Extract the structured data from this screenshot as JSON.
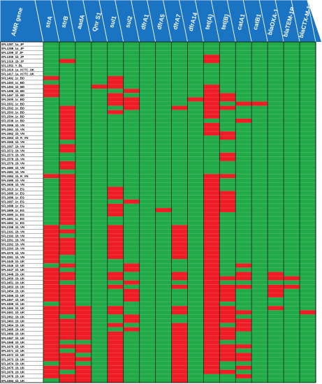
{
  "chart_data": {
    "type": "heatmap",
    "corner_label": "AMR gene",
    "genes": [
      "strA",
      "strB",
      "aadA",
      "Qnr S1",
      "sul1",
      "sul2",
      "dfrA1",
      "dfrA5",
      "dfrA7",
      "dfrA14",
      "tet(A)",
      "tet(B)",
      "catA1",
      "catB1",
      "blaOXA-1",
      "blaTEM-1B",
      "blaCTX-M-1"
    ],
    "strains": [
      "SFL1287_1a_JP",
      "SFL1288_1a_JP",
      "SFL1299_1f_JP",
      "SFL1309_1b_JP",
      "SFL1316_1b_JP",
      "SFL1352_Y_BL",
      "SFL1416_1a_XCTC_UK",
      "SFL1417_1a_XCTC_UK",
      "SFL1492_1c_BD",
      "SFL1493_1c_BD",
      "SFL1494_1b_BD",
      "SFL1496_1b_BD",
      "SFL1497_1b_BD",
      "SFL1500_1c_BD",
      "SFL1501_1c_BD",
      "SFL1502_1c_BD",
      "SFL1503_1c_BD",
      "SFL1504_1c_BD",
      "SFL1538_1c_BD",
      "SFL1556_1b_VN",
      "SFL1561_1b_VN",
      "SFL1562_1b_VN",
      "SFL1564_1b_R_VN",
      "SFL1565_1b_VN",
      "SFL1567_1b_VN",
      "SFL1572_1b_VN",
      "SFL1573_1b_VN",
      "SFL1578_1b_VN",
      "SFL1579_1b_VN",
      "SFL1580_1b_VN",
      "SFL1581_1b_VN",
      "SFL1584_1b_R_VN",
      "SFL1585_1b_VN",
      "SFL1606_1b_VN",
      "SFL1613_1c_EG",
      "SFL1685_1c_EG",
      "SFL1686_1c_EG",
      "SFL1687_1c_EG",
      "SFL1688_1c_EG",
      "SFL1689_1c_EG",
      "SFL1690_1c_EG",
      "SFL1691_1c_EG",
      "SFL1692_1c_EG",
      "SFL2158_1b_VN",
      "SFL2191_1b_VN",
      "SFL2192_1b_VN",
      "SFL2261_1b_VN",
      "SFL2262_1b_VN",
      "SFL2263_1b_VN",
      "SFL2276_1b_VN",
      "SFL2281_1b_VN",
      "SFL2445_1b_UK",
      "SFL2446_1b_UK",
      "SFL2447_1b_UK",
      "SFL2448_1b_UK",
      "SFL2450_1b_UK",
      "SFL2451_1b_UK",
      "SFL2453_1b_UK",
      "SFL2454_1b_UK",
      "SFL2456_1b_UK",
      "SFL2457_1b_UK",
      "SFL2459_1b_UK",
      "SFL2460_1b_UK",
      "SFL2461_1b_UK",
      "SFL2462_1b_UK",
      "SFL2463_1b_UK",
      "SFL2464_1b_UK",
      "SFL2465_1b_UK",
      "SFL2466_1b_UK",
      "SFL2467_1b_UK",
      "SFL2468_1b_UK",
      "SFL2470_1b_UK",
      "SFL2471_1b_UK",
      "SFL2472_1b_UK",
      "SFL2473_1b_UK",
      "SFL2474_1b_UK",
      "SFL2475_1b_UK",
      "SFL2476_1b_UK",
      "SFL2478_1b_UK",
      "SFL2484_1b_UK"
    ],
    "values": [
      [
        0,
        0,
        0,
        0,
        0,
        0,
        0,
        0,
        0,
        0,
        0,
        0,
        0,
        0,
        0,
        0,
        0
      ],
      [
        0,
        0,
        0,
        0,
        0,
        0,
        0,
        0,
        0,
        0,
        0,
        0,
        0,
        0,
        0,
        0,
        0
      ],
      [
        0,
        0,
        0,
        0,
        0,
        0,
        0,
        0,
        0,
        0,
        0,
        0,
        0,
        0,
        0,
        0,
        0
      ],
      [
        0,
        0,
        0,
        0,
        0,
        0,
        0,
        0,
        0,
        0,
        1,
        0,
        0,
        0,
        0,
        0,
        0
      ],
      [
        0,
        1,
        0,
        0,
        0,
        0,
        0,
        0,
        0,
        0,
        1,
        0,
        0,
        0,
        0,
        0,
        0
      ],
      [
        0,
        0,
        0,
        0,
        0,
        0,
        0,
        0,
        0,
        0,
        0,
        0,
        0,
        0,
        0,
        0,
        0
      ],
      [
        0,
        0,
        0,
        0,
        0,
        0,
        0,
        0,
        0,
        0,
        0,
        0,
        0,
        0,
        0,
        0,
        0
      ],
      [
        0,
        0,
        0,
        0,
        0,
        0,
        0,
        0,
        0,
        0,
        0,
        0,
        0,
        0,
        0,
        0,
        0
      ],
      [
        1,
        0,
        0,
        0,
        1,
        0,
        0,
        0,
        0,
        0,
        0,
        0,
        0,
        0,
        0,
        0,
        0
      ],
      [
        0,
        0,
        0,
        0,
        1,
        0,
        0,
        0,
        0,
        0,
        0,
        0,
        0,
        0,
        0,
        0,
        0
      ],
      [
        1,
        0,
        0,
        1,
        1,
        0,
        0,
        0,
        0,
        0,
        1,
        0,
        0,
        0,
        0,
        0,
        0
      ],
      [
        1,
        0,
        0,
        0,
        0,
        1,
        0,
        0,
        0,
        0,
        1,
        0,
        0,
        0,
        0,
        0,
        0
      ],
      [
        1,
        0,
        0,
        0,
        1,
        0,
        0,
        0,
        0,
        0,
        1,
        1,
        0,
        0,
        0,
        0,
        0
      ],
      [
        0,
        0,
        0,
        0,
        1,
        1,
        0,
        0,
        0,
        1,
        1,
        1,
        0,
        0,
        0,
        0,
        0
      ],
      [
        0,
        0,
        0,
        0,
        1,
        1,
        0,
        0,
        0,
        0,
        1,
        0,
        1,
        1,
        0,
        0,
        0
      ],
      [
        0,
        1,
        0,
        0,
        0,
        1,
        0,
        0,
        1,
        0,
        1,
        1,
        0,
        0,
        0,
        0,
        0
      ],
      [
        0,
        1,
        0,
        0,
        1,
        0,
        0,
        0,
        0,
        0,
        1,
        0,
        0,
        0,
        0,
        0,
        0
      ],
      [
        0,
        1,
        0,
        0,
        0,
        0,
        0,
        0,
        0,
        0,
        1,
        0,
        0,
        0,
        0,
        0,
        0
      ],
      [
        0,
        1,
        0,
        0,
        0,
        0,
        0,
        0,
        0,
        0,
        0,
        0,
        1,
        0,
        0,
        0,
        0
      ],
      [
        0,
        1,
        0,
        0,
        0,
        0,
        0,
        0,
        0,
        0,
        1,
        0,
        0,
        0,
        0,
        0,
        0
      ],
      [
        0,
        1,
        0,
        0,
        0,
        0,
        0,
        0,
        0,
        0,
        1,
        0,
        0,
        0,
        0,
        0,
        0
      ],
      [
        0,
        1,
        0,
        0,
        0,
        0,
        0,
        0,
        0,
        0,
        1,
        1,
        0,
        0,
        0,
        0,
        0
      ],
      [
        0,
        1,
        0,
        0,
        0,
        0,
        0,
        0,
        0,
        0,
        0,
        1,
        0,
        0,
        0,
        0,
        0
      ],
      [
        0,
        0,
        0,
        0,
        0,
        0,
        0,
        0,
        0,
        0,
        0,
        0,
        0,
        0,
        0,
        0,
        0
      ],
      [
        0,
        1,
        0,
        0,
        0,
        0,
        0,
        0,
        0,
        0,
        0,
        0,
        0,
        0,
        0,
        0,
        0
      ],
      [
        0,
        1,
        0,
        0,
        0,
        0,
        0,
        0,
        0,
        0,
        0,
        0,
        0,
        0,
        0,
        0,
        0
      ],
      [
        0,
        0,
        0,
        0,
        0,
        0,
        0,
        0,
        0,
        0,
        0,
        1,
        0,
        0,
        0,
        0,
        0
      ],
      [
        0,
        0,
        0,
        0,
        0,
        0,
        0,
        0,
        0,
        0,
        0,
        1,
        0,
        0,
        0,
        0,
        0
      ],
      [
        0,
        1,
        0,
        0,
        0,
        0,
        0,
        0,
        0,
        0,
        0,
        0,
        0,
        0,
        0,
        0,
        0
      ],
      [
        0,
        1,
        0,
        0,
        0,
        0,
        0,
        0,
        0,
        0,
        0,
        0,
        0,
        0,
        0,
        0,
        0
      ],
      [
        0,
        0,
        0,
        0,
        0,
        0,
        0,
        0,
        0,
        0,
        0,
        0,
        0,
        0,
        0,
        0,
        0
      ],
      [
        1,
        1,
        0,
        0,
        0,
        0,
        0,
        0,
        0,
        0,
        1,
        1,
        0,
        0,
        0,
        0,
        0
      ],
      [
        0,
        1,
        0,
        0,
        0,
        0,
        0,
        0,
        0,
        0,
        1,
        0,
        0,
        0,
        0,
        0,
        0
      ],
      [
        0,
        1,
        0,
        0,
        0,
        0,
        0,
        0,
        0,
        0,
        1,
        0,
        0,
        0,
        0,
        0,
        0
      ],
      [
        0,
        1,
        0,
        0,
        1,
        0,
        0,
        0,
        0,
        0,
        1,
        0,
        0,
        0,
        0,
        0,
        0
      ],
      [
        0,
        1,
        0,
        0,
        1,
        0,
        0,
        0,
        0,
        0,
        1,
        1,
        0,
        0,
        0,
        0,
        0
      ],
      [
        0,
        1,
        0,
        0,
        1,
        0,
        0,
        0,
        0,
        0,
        1,
        1,
        0,
        0,
        0,
        0,
        0
      ],
      [
        0,
        1,
        0,
        0,
        0,
        1,
        0,
        0,
        0,
        0,
        1,
        1,
        0,
        0,
        0,
        0,
        0
      ],
      [
        0,
        1,
        0,
        0,
        1,
        0,
        0,
        0,
        0,
        0,
        1,
        1,
        0,
        0,
        0,
        0,
        0
      ],
      [
        0,
        1,
        0,
        0,
        1,
        0,
        0,
        1,
        0,
        0,
        1,
        1,
        0,
        0,
        0,
        0,
        0
      ],
      [
        0,
        1,
        0,
        0,
        1,
        0,
        0,
        0,
        0,
        0,
        1,
        0,
        0,
        0,
        0,
        0,
        0
      ],
      [
        0,
        1,
        0,
        0,
        0,
        0,
        0,
        0,
        0,
        0,
        1,
        0,
        0,
        0,
        0,
        0,
        0
      ],
      [
        0,
        1,
        0,
        0,
        0,
        0,
        0,
        0,
        0,
        0,
        1,
        0,
        0,
        0,
        0,
        0,
        0
      ],
      [
        1,
        0,
        0,
        0,
        1,
        0,
        0,
        0,
        1,
        0,
        1,
        0,
        0,
        0,
        0,
        0,
        0
      ],
      [
        1,
        1,
        0,
        0,
        1,
        0,
        0,
        0,
        1,
        0,
        1,
        0,
        0,
        0,
        0,
        0,
        0
      ],
      [
        1,
        0,
        0,
        0,
        1,
        0,
        0,
        0,
        1,
        0,
        1,
        0,
        0,
        0,
        0,
        0,
        0
      ],
      [
        1,
        1,
        0,
        0,
        1,
        0,
        0,
        0,
        1,
        0,
        1,
        0,
        0,
        0,
        0,
        0,
        0
      ],
      [
        1,
        1,
        0,
        0,
        1,
        0,
        0,
        0,
        1,
        0,
        1,
        0,
        0,
        0,
        0,
        0,
        0
      ],
      [
        1,
        1,
        0,
        0,
        1,
        0,
        0,
        0,
        1,
        0,
        1,
        0,
        0,
        0,
        0,
        0,
        0
      ],
      [
        1,
        1,
        0,
        0,
        1,
        0,
        0,
        0,
        1,
        0,
        1,
        0,
        0,
        0,
        0,
        0,
        0
      ],
      [
        1,
        0,
        0,
        0,
        1,
        0,
        0,
        0,
        1,
        0,
        1,
        0,
        0,
        0,
        0,
        0,
        0
      ],
      [
        1,
        0,
        0,
        0,
        0,
        0,
        0,
        0,
        0,
        0,
        1,
        0,
        0,
        0,
        0,
        0,
        0
      ],
      [
        0,
        1,
        0,
        0,
        0,
        1,
        0,
        0,
        0,
        0,
        1,
        0,
        1,
        0,
        0,
        0,
        0
      ],
      [
        1,
        0,
        0,
        0,
        0,
        1,
        0,
        0,
        0,
        0,
        1,
        0,
        0,
        0,
        0,
        0,
        0
      ],
      [
        1,
        1,
        0,
        0,
        1,
        0,
        0,
        0,
        1,
        0,
        1,
        0,
        1,
        0,
        1,
        0,
        0
      ],
      [
        1,
        1,
        0,
        0,
        1,
        0,
        0,
        0,
        1,
        0,
        1,
        1,
        1,
        0,
        1,
        1,
        0
      ],
      [
        1,
        0,
        0,
        0,
        0,
        1,
        0,
        0,
        0,
        0,
        1,
        0,
        0,
        0,
        0,
        0,
        0
      ],
      [
        1,
        1,
        0,
        0,
        1,
        0,
        0,
        0,
        1,
        0,
        1,
        1,
        1,
        0,
        1,
        1,
        0
      ],
      [
        1,
        1,
        0,
        0,
        0,
        1,
        0,
        0,
        0,
        0,
        1,
        1,
        0,
        0,
        1,
        0,
        0
      ],
      [
        1,
        1,
        0,
        0,
        0,
        1,
        0,
        0,
        0,
        0,
        1,
        1,
        0,
        0,
        1,
        0,
        0
      ],
      [
        1,
        1,
        0,
        0,
        0,
        1,
        0,
        0,
        0,
        0,
        1,
        1,
        0,
        0,
        0,
        0,
        0
      ],
      [
        0,
        1,
        0,
        0,
        0,
        0,
        0,
        0,
        0,
        0,
        1,
        0,
        0,
        0,
        0,
        0,
        0
      ],
      [
        1,
        1,
        1,
        0,
        1,
        0,
        0,
        0,
        1,
        0,
        1,
        1,
        0,
        0,
        1,
        0,
        0
      ],
      [
        1,
        1,
        1,
        0,
        1,
        0,
        0,
        0,
        1,
        0,
        1,
        1,
        1,
        0,
        0,
        0,
        1
      ],
      [
        1,
        0,
        1,
        0,
        0,
        1,
        0,
        0,
        0,
        0,
        1,
        1,
        0,
        0,
        0,
        0,
        0
      ],
      [
        1,
        1,
        1,
        0,
        0,
        1,
        0,
        0,
        0,
        0,
        1,
        1,
        1,
        0,
        0,
        0,
        0
      ],
      [
        1,
        1,
        1,
        0,
        1,
        0,
        0,
        0,
        1,
        0,
        1,
        0,
        1,
        0,
        0,
        0,
        0
      ],
      [
        1,
        1,
        1,
        0,
        0,
        1,
        0,
        0,
        1,
        0,
        1,
        1,
        1,
        0,
        0,
        0,
        0
      ],
      [
        1,
        1,
        1,
        0,
        1,
        0,
        0,
        0,
        1,
        0,
        1,
        1,
        0,
        0,
        0,
        0,
        0
      ],
      [
        1,
        1,
        1,
        0,
        1,
        0,
        0,
        0,
        1,
        0,
        1,
        1,
        0,
        0,
        0,
        0,
        0
      ],
      [
        1,
        0,
        0,
        0,
        1,
        0,
        0,
        0,
        1,
        0,
        1,
        0,
        0,
        0,
        0,
        0,
        0
      ],
      [
        1,
        1,
        1,
        0,
        1,
        0,
        0,
        0,
        1,
        0,
        1,
        1,
        1,
        0,
        0,
        0,
        0
      ],
      [
        1,
        0,
        1,
        0,
        1,
        0,
        0,
        0,
        1,
        0,
        1,
        1,
        0,
        0,
        0,
        0,
        0
      ],
      [
        1,
        1,
        0,
        0,
        1,
        0,
        0,
        0,
        1,
        0,
        1,
        1,
        1,
        0,
        0,
        0,
        0
      ],
      [
        1,
        1,
        1,
        0,
        1,
        0,
        0,
        0,
        1,
        0,
        1,
        1,
        1,
        0,
        0,
        0,
        0
      ],
      [
        0,
        1,
        0,
        0,
        1,
        0,
        0,
        0,
        1,
        0,
        1,
        0,
        0,
        0,
        0,
        0,
        0
      ],
      [
        1,
        1,
        1,
        0,
        1,
        0,
        0,
        0,
        1,
        0,
        1,
        0,
        1,
        0,
        0,
        0,
        0
      ],
      [
        1,
        0,
        1,
        0,
        1,
        0,
        0,
        0,
        1,
        0,
        1,
        1,
        0,
        0,
        0,
        0,
        0
      ],
      [
        1,
        1,
        1,
        0,
        1,
        0,
        0,
        0,
        1,
        0,
        0,
        0,
        1,
        0,
        0,
        0,
        0
      ],
      [
        0,
        1,
        1,
        0,
        1,
        0,
        0,
        0,
        1,
        0,
        0,
        0,
        0,
        0,
        0,
        0,
        0
      ]
    ],
    "legend": []
  },
  "colors": {
    "present": "#ee1c24",
    "absent": "#22aa48",
    "header": "#1a74c2",
    "header_edge": "#ffffff",
    "divider": "#0b3a1b"
  }
}
